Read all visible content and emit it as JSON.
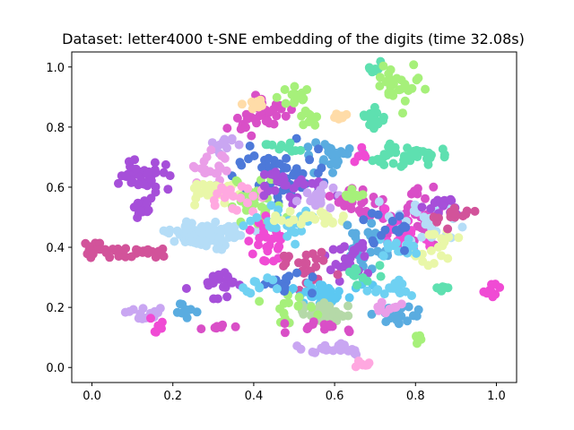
{
  "chart_data": {
    "type": "scatter",
    "title": "Dataset: letter4000 t-SNE embedding of the digits (time 32.08s)",
    "xlabel": "",
    "ylabel": "",
    "xlim": [
      -0.05,
      1.05
    ],
    "ylim": [
      -0.05,
      1.05
    ],
    "xticks": [
      0.0,
      0.2,
      0.4,
      0.6,
      0.8,
      1.0
    ],
    "yticks": [
      0.0,
      0.2,
      0.4,
      0.6,
      0.8,
      1.0
    ],
    "xtick_labels": [
      "0.0",
      "0.2",
      "0.4",
      "0.6",
      "0.8",
      "1.0"
    ],
    "ytick_labels": [
      "0.0",
      "0.2",
      "0.4",
      "0.6",
      "0.8",
      "1.0"
    ],
    "grid": false,
    "legend": "none",
    "clusters": [
      {
        "color": "#a64fd9",
        "center": [
          0.12,
          0.63
        ],
        "spread": [
          0.025,
          0.03
        ],
        "count": 40
      },
      {
        "color": "#a64fd9",
        "center": [
          0.125,
          0.52
        ],
        "spread": [
          0.01,
          0.015
        ],
        "count": 12
      },
      {
        "color": "#d2539a",
        "center": [
          0.01,
          0.39
        ],
        "spread": [
          0.01,
          0.015
        ],
        "count": 14
      },
      {
        "color": "#d2539a",
        "center": [
          0.06,
          0.38
        ],
        "spread": [
          0.015,
          0.01
        ],
        "count": 12
      },
      {
        "color": "#d2539a",
        "center": [
          0.14,
          0.38
        ],
        "spread": [
          0.02,
          0.01
        ],
        "count": 14
      },
      {
        "color": "#c9a6f2",
        "center": [
          0.14,
          0.18
        ],
        "spread": [
          0.03,
          0.008
        ],
        "count": 16
      },
      {
        "color": "#f04bd4",
        "center": [
          0.16,
          0.14
        ],
        "spread": [
          0.008,
          0.01
        ],
        "count": 6
      },
      {
        "color": "#5aace0",
        "center": [
          0.23,
          0.19
        ],
        "spread": [
          0.015,
          0.01
        ],
        "count": 10
      },
      {
        "color": "#b5ddf7",
        "center": [
          0.28,
          0.44
        ],
        "spread": [
          0.045,
          0.02
        ],
        "count": 80
      },
      {
        "color": "#a64fd9",
        "center": [
          0.3,
          0.28
        ],
        "spread": [
          0.03,
          0.03
        ],
        "count": 20
      },
      {
        "color": "#d94fc7",
        "center": [
          0.32,
          0.13
        ],
        "spread": [
          0.02,
          0.005
        ],
        "count": 8
      },
      {
        "color": "#d94fc7",
        "center": [
          0.42,
          0.84
        ],
        "spread": [
          0.035,
          0.03
        ],
        "count": 35
      },
      {
        "color": "#ffdca8",
        "center": [
          0.41,
          0.88
        ],
        "spread": [
          0.02,
          0.01
        ],
        "count": 12
      },
      {
        "color": "#a6f07a",
        "center": [
          0.5,
          0.9
        ],
        "spread": [
          0.02,
          0.02
        ],
        "count": 15
      },
      {
        "color": "#a6f07a",
        "center": [
          0.53,
          0.82
        ],
        "spread": [
          0.015,
          0.015
        ],
        "count": 10
      },
      {
        "color": "#ffdca8",
        "center": [
          0.615,
          0.84
        ],
        "spread": [
          0.01,
          0.008
        ],
        "count": 8
      },
      {
        "color": "#5ee0b0",
        "center": [
          0.7,
          0.83
        ],
        "spread": [
          0.015,
          0.015
        ],
        "count": 15
      },
      {
        "color": "#5ee0b0",
        "center": [
          0.7,
          0.99
        ],
        "spread": [
          0.012,
          0.01
        ],
        "count": 8
      },
      {
        "color": "#a6f07a",
        "center": [
          0.76,
          0.94
        ],
        "spread": [
          0.025,
          0.04
        ],
        "count": 30
      },
      {
        "color": "#5ee0b0",
        "center": [
          0.78,
          0.71
        ],
        "spread": [
          0.04,
          0.02
        ],
        "count": 45
      },
      {
        "color": "#f04bd4",
        "center": [
          0.665,
          0.7
        ],
        "spread": [
          0.008,
          0.02
        ],
        "count": 6
      },
      {
        "color": "#5aace0",
        "center": [
          0.58,
          0.7
        ],
        "spread": [
          0.03,
          0.03
        ],
        "count": 25
      },
      {
        "color": "#4d79d9",
        "center": [
          0.45,
          0.66
        ],
        "spread": [
          0.06,
          0.05
        ],
        "count": 50
      },
      {
        "color": "#c9a6f2",
        "center": [
          0.32,
          0.74
        ],
        "spread": [
          0.02,
          0.02
        ],
        "count": 12
      },
      {
        "color": "#ea9ee8",
        "center": [
          0.3,
          0.67
        ],
        "spread": [
          0.025,
          0.03
        ],
        "count": 20
      },
      {
        "color": "#e9f7a8",
        "center": [
          0.3,
          0.58
        ],
        "spread": [
          0.035,
          0.02
        ],
        "count": 30
      },
      {
        "color": "#a6f07a",
        "center": [
          0.4,
          0.55
        ],
        "spread": [
          0.04,
          0.04
        ],
        "count": 30
      },
      {
        "color": "#ffa8e0",
        "center": [
          0.36,
          0.57
        ],
        "spread": [
          0.03,
          0.03
        ],
        "count": 20
      },
      {
        "color": "#a64fd9",
        "center": [
          0.5,
          0.6
        ],
        "spread": [
          0.04,
          0.03
        ],
        "count": 25
      },
      {
        "color": "#5ee0b0",
        "center": [
          0.48,
          0.73
        ],
        "spread": [
          0.02,
          0.01
        ],
        "count": 12
      },
      {
        "color": "#f04bd4",
        "center": [
          0.43,
          0.4
        ],
        "spread": [
          0.025,
          0.04
        ],
        "count": 25
      },
      {
        "color": "#6fd1f2",
        "center": [
          0.48,
          0.48
        ],
        "spread": [
          0.05,
          0.03
        ],
        "count": 30
      },
      {
        "color": "#e9f7a8",
        "center": [
          0.54,
          0.5
        ],
        "spread": [
          0.04,
          0.02
        ],
        "count": 25
      },
      {
        "color": "#c9a6f2",
        "center": [
          0.56,
          0.57
        ],
        "spread": [
          0.03,
          0.02
        ],
        "count": 20
      },
      {
        "color": "#d94fc7",
        "center": [
          0.64,
          0.56
        ],
        "spread": [
          0.03,
          0.03
        ],
        "count": 20
      },
      {
        "color": "#5aace0",
        "center": [
          0.68,
          0.4
        ],
        "spread": [
          0.03,
          0.05
        ],
        "count": 25
      },
      {
        "color": "#a64fd9",
        "center": [
          0.64,
          0.36
        ],
        "spread": [
          0.03,
          0.03
        ],
        "count": 25
      },
      {
        "color": "#d2539a",
        "center": [
          0.52,
          0.34
        ],
        "spread": [
          0.04,
          0.03
        ],
        "count": 25
      },
      {
        "color": "#5cc8f2",
        "center": [
          0.58,
          0.25
        ],
        "spread": [
          0.05,
          0.02
        ],
        "count": 35
      },
      {
        "color": "#b5d9a8",
        "center": [
          0.58,
          0.18
        ],
        "spread": [
          0.04,
          0.02
        ],
        "count": 30
      },
      {
        "color": "#a6f07a",
        "center": [
          0.48,
          0.2
        ],
        "spread": [
          0.04,
          0.03
        ],
        "count": 15
      },
      {
        "color": "#4d79d9",
        "center": [
          0.48,
          0.28
        ],
        "spread": [
          0.03,
          0.02
        ],
        "count": 15
      },
      {
        "color": "#d94fc7",
        "center": [
          0.55,
          0.13
        ],
        "spread": [
          0.04,
          0.01
        ],
        "count": 14
      },
      {
        "color": "#c9a6f2",
        "center": [
          0.6,
          0.06
        ],
        "spread": [
          0.04,
          0.01
        ],
        "count": 25
      },
      {
        "color": "#ffa8e0",
        "center": [
          0.67,
          0.01
        ],
        "spread": [
          0.01,
          0.005
        ],
        "count": 8
      },
      {
        "color": "#6fd1f2",
        "center": [
          0.41,
          0.28
        ],
        "spread": [
          0.02,
          0.02
        ],
        "count": 10
      },
      {
        "color": "#5aace0",
        "center": [
          0.76,
          0.18
        ],
        "spread": [
          0.03,
          0.02
        ],
        "count": 20
      },
      {
        "color": "#ea9ee8",
        "center": [
          0.73,
          0.2
        ],
        "spread": [
          0.02,
          0.01
        ],
        "count": 10
      },
      {
        "color": "#a6f07a",
        "center": [
          0.81,
          0.1
        ],
        "spread": [
          0.008,
          0.008
        ],
        "count": 6
      },
      {
        "color": "#5ee0b0",
        "center": [
          0.87,
          0.26
        ],
        "spread": [
          0.012,
          0.008
        ],
        "count": 8
      },
      {
        "color": "#f04bd4",
        "center": [
          0.99,
          0.26
        ],
        "spread": [
          0.01,
          0.015
        ],
        "count": 12
      },
      {
        "color": "#6fd1f2",
        "center": [
          0.74,
          0.26
        ],
        "spread": [
          0.03,
          0.015
        ],
        "count": 15
      },
      {
        "color": "#d94fc7",
        "center": [
          0.8,
          0.5
        ],
        "spread": [
          0.05,
          0.04
        ],
        "count": 40
      },
      {
        "color": "#f04bd4",
        "center": [
          0.78,
          0.45
        ],
        "spread": [
          0.04,
          0.04
        ],
        "count": 25
      },
      {
        "color": "#b5ddf7",
        "center": [
          0.82,
          0.48
        ],
        "spread": [
          0.05,
          0.04
        ],
        "count": 30
      },
      {
        "color": "#e9f7a8",
        "center": [
          0.86,
          0.4
        ],
        "spread": [
          0.03,
          0.03
        ],
        "count": 20
      },
      {
        "color": "#6fd1f2",
        "center": [
          0.76,
          0.39
        ],
        "spread": [
          0.03,
          0.02
        ],
        "count": 15
      },
      {
        "color": "#4d79d9",
        "center": [
          0.72,
          0.47
        ],
        "spread": [
          0.03,
          0.03
        ],
        "count": 15
      },
      {
        "color": "#a64fd9",
        "center": [
          0.85,
          0.55
        ],
        "spread": [
          0.03,
          0.02
        ],
        "count": 15
      },
      {
        "color": "#d2539a",
        "center": [
          0.88,
          0.5
        ],
        "spread": [
          0.03,
          0.02
        ],
        "count": 15
      },
      {
        "color": "#5ee0b0",
        "center": [
          0.68,
          0.3
        ],
        "spread": [
          0.03,
          0.02
        ],
        "count": 10
      },
      {
        "color": "#a6f07a",
        "center": [
          0.66,
          0.57
        ],
        "spread": [
          0.02,
          0.01
        ],
        "count": 8
      }
    ]
  }
}
